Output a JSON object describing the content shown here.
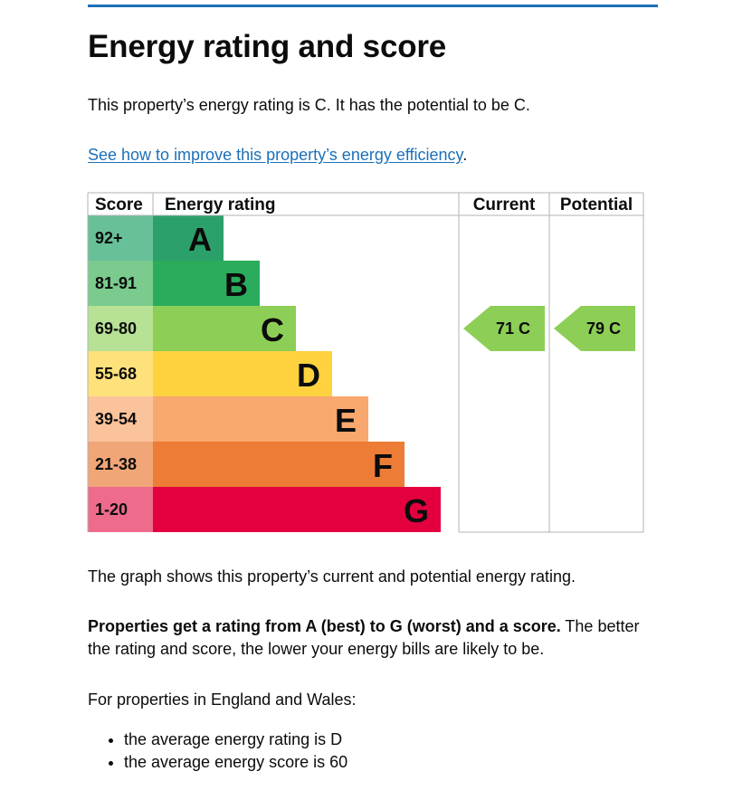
{
  "heading": "Energy rating and score",
  "intro": "This property’s energy rating is C. It has the potential to be C.",
  "improve_link": "See how to improve this property’s energy efficiency",
  "improve_link_suffix": ".",
  "chart_data": {
    "type": "table",
    "columns": [
      "Score",
      "Energy rating",
      "Current",
      "Potential"
    ],
    "bands": [
      {
        "score": "92+",
        "rating": "A",
        "color": "#2ca06a",
        "score_bg": "#68c099"
      },
      {
        "score": "81-91",
        "rating": "B",
        "color": "#2aac5c",
        "score_bg": "#7acb8d"
      },
      {
        "score": "69-80",
        "rating": "C",
        "color": "#8dcf56",
        "score_bg": "#b7e195"
      },
      {
        "score": "55-68",
        "rating": "D",
        "color": "#fed23f",
        "score_bg": "#fee17b"
      },
      {
        "score": "39-54",
        "rating": "E",
        "color": "#f8a76e",
        "score_bg": "#fbc39b"
      },
      {
        "score": "21-38",
        "rating": "F",
        "color": "#ec7c36",
        "score_bg": "#f1a677"
      },
      {
        "score": "1-20",
        "rating": "G",
        "color": "#e4003f",
        "score_bg": "#ee6b8c"
      }
    ],
    "current": {
      "score": 71,
      "rating": "C",
      "label": "71 C",
      "color": "#8dcf56"
    },
    "potential": {
      "score": 79,
      "rating": "C",
      "label": "79 C",
      "color": "#8dcf56"
    }
  },
  "graph_text": "The graph shows this property’s current and potential energy rating.",
  "rating_bold": "Properties get a rating from A (best) to G (worst) and a score.",
  "rating_rest": " The better the rating and score, the lower your energy bills are likely to be.",
  "average_intro": "For properties in England and Wales:",
  "averages": [
    "the average energy rating is D",
    "the average energy score is 60"
  ]
}
